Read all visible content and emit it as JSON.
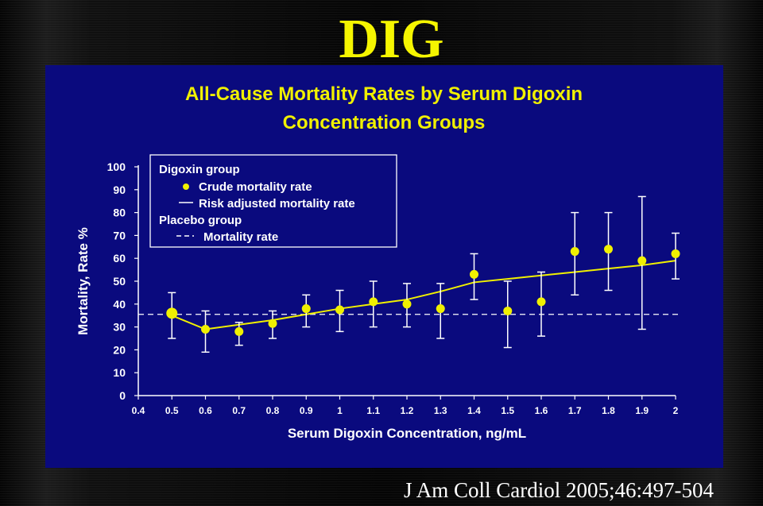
{
  "slide": {
    "title": "DIG",
    "citation": "J Am Coll Cardiol 2005;46:497-504"
  },
  "colors": {
    "title": "#f5f500",
    "panel_background": "#0a0a7e",
    "data": "#f0f000",
    "axis": "#ffffff"
  },
  "chart_data": {
    "type": "scatter",
    "title_lines": [
      "All-Cause Mortality Rates by Serum Digoxin",
      "Concentration Groups"
    ],
    "xlabel": "Serum Digoxin Concentration, ng/mL",
    "ylabel": "Mortality, Rate %",
    "xlim": [
      0.4,
      2.0
    ],
    "ylim": [
      0,
      100
    ],
    "x_ticks": [
      "0.4",
      "0.5",
      "0.6",
      "0.7",
      "0.8",
      "0.9",
      "1",
      "1.1",
      "1.2",
      "1.3",
      "1.4",
      "1.5",
      "1.6",
      "1.7",
      "1.8",
      "1.9",
      "2"
    ],
    "y_ticks": [
      "0",
      "10",
      "20",
      "30",
      "40",
      "50",
      "60",
      "70",
      "80",
      "90",
      "100"
    ],
    "legend": {
      "position": "top-left",
      "items": [
        {
          "text": "Digoxin group",
          "kind": "header"
        },
        {
          "text": "Crude mortality rate",
          "kind": "dot"
        },
        {
          "text": "Risk adjusted mortality rate",
          "kind": "line"
        },
        {
          "text": "Placebo group",
          "kind": "header"
        },
        {
          "text": "Mortality rate",
          "kind": "dash"
        }
      ]
    },
    "series": [
      {
        "name": "Crude mortality rate",
        "kind": "points_with_error_bars",
        "points": [
          {
            "x": 0.5,
            "y": 36,
            "low": 25,
            "high": 45
          },
          {
            "x": 0.6,
            "y": 29,
            "low": 19,
            "high": 37
          },
          {
            "x": 0.7,
            "y": 28,
            "low": 22,
            "high": 32
          },
          {
            "x": 0.8,
            "y": 31.5,
            "low": 25,
            "high": 37
          },
          {
            "x": 0.9,
            "y": 38,
            "low": 30,
            "high": 44
          },
          {
            "x": 1.0,
            "y": 37.5,
            "low": 28,
            "high": 46
          },
          {
            "x": 1.1,
            "y": 41,
            "low": 30,
            "high": 50
          },
          {
            "x": 1.2,
            "y": 40,
            "low": 30,
            "high": 49
          },
          {
            "x": 1.3,
            "y": 38,
            "low": 25,
            "high": 49
          },
          {
            "x": 1.4,
            "y": 53,
            "low": 42,
            "high": 62
          },
          {
            "x": 1.5,
            "y": 37,
            "low": 21,
            "high": 50
          },
          {
            "x": 1.6,
            "y": 41,
            "low": 26,
            "high": 54
          },
          {
            "x": 1.7,
            "y": 63,
            "low": 44,
            "high": 80
          },
          {
            "x": 1.8,
            "y": 64,
            "low": 46,
            "high": 80
          },
          {
            "x": 1.9,
            "y": 59,
            "low": 29,
            "high": 87
          },
          {
            "x": 2.0,
            "y": 62,
            "low": 51,
            "high": 71
          }
        ]
      },
      {
        "name": "Risk adjusted mortality rate",
        "kind": "line",
        "x": [
          0.5,
          0.6,
          0.8,
          0.9,
          1.0,
          1.1,
          1.2,
          1.3,
          1.4,
          1.5,
          1.6,
          1.7,
          1.8,
          1.9,
          2.0
        ],
        "y": [
          35,
          29,
          33,
          35.5,
          38,
          40,
          42,
          45.5,
          49.5,
          51,
          52.5,
          54,
          55.5,
          57,
          59
        ]
      },
      {
        "name": "Mortality rate",
        "kind": "dashed_reference",
        "y": 35.5
      }
    ]
  }
}
